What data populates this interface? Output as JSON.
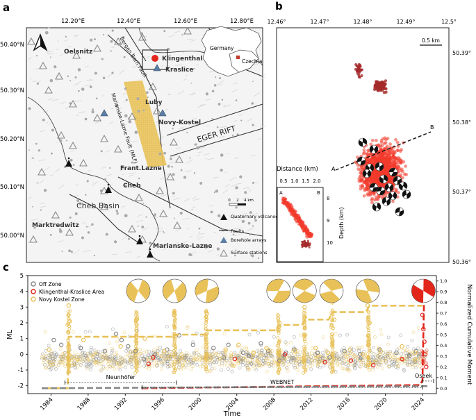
{
  "panels": {
    "a": {
      "label": "a",
      "lon_ticks": [
        "12.20°E",
        "12.40°E",
        "12.60°E",
        "12.80°E"
      ],
      "lat_ticks": [
        "50.40°N",
        "50.30°N",
        "50.20°N",
        "50.10°N",
        "50.00°N"
      ],
      "places": [
        "Oelsnitz",
        "Klingenthal",
        "Kraslice",
        "Luby",
        "Novy-Kostel",
        "Frant.Lazne",
        "Cheb",
        "Cheb Basin",
        "Marktredwitz",
        "Marianske-Lazne"
      ],
      "fault_labels": [
        "Bergen Barn Fault",
        "Marianske-Lazne Fault (MLF)",
        "EGER RIFT"
      ],
      "inset": {
        "countries": [
          "Germany",
          "Czechia"
        ]
      },
      "scalebar": {
        "ticks": [
          "0",
          "2",
          "4 km"
        ]
      },
      "legend": [
        {
          "label": "Quaternary volcanoes",
          "symbol": "volcano"
        },
        {
          "label": "Faults",
          "symbol": "line"
        },
        {
          "label": "Borehole arrays",
          "symbol": "blue-triangle"
        },
        {
          "label": "Surface stations",
          "symbol": "open-triangle"
        }
      ]
    },
    "b": {
      "label": "b",
      "lon_ticks": [
        "12.46°",
        "12.47°",
        "12.48°",
        "12.49°",
        "12.5°"
      ],
      "lat_ticks": [
        "50.39°",
        "50.38°",
        "50.37°",
        "50.36°"
      ],
      "scale_label": "0.5 km",
      "profile_labels": [
        "A",
        "B"
      ],
      "section": {
        "xlabel": "Distance (km)",
        "x_ticks": [
          "0.5",
          "1.0",
          "1.5",
          "2.0"
        ],
        "ylabel": "Depth (km)",
        "y_ticks": [
          "8",
          "9",
          "10"
        ],
        "ends": [
          "A",
          "B"
        ]
      }
    },
    "c": {
      "label": "c"
    }
  },
  "chart_data": {
    "type": "scatter",
    "title": "",
    "xlabel": "Time",
    "ylabel": "ML",
    "y2label": "Normalized Cumulative Moment",
    "xlim": [
      1981.5,
      2025.5
    ],
    "ylim": [
      -2.5,
      5
    ],
    "y2lim": [
      -0.05,
      1.05
    ],
    "x_ticks": [
      1984,
      1988,
      1992,
      1996,
      2000,
      2004,
      2008,
      2012,
      2016,
      2020,
      2024
    ],
    "y_ticks": [
      -2,
      -1,
      0,
      1,
      2,
      3,
      4,
      5
    ],
    "y2_ticks": [
      0.0,
      0.1,
      0.2,
      0.3,
      0.4,
      0.5,
      0.6,
      0.7,
      0.8,
      0.9,
      1.0
    ],
    "legend": [
      {
        "label": "Off Zone",
        "color": "#888888"
      },
      {
        "label": "Klingenthal-Kraslice Area",
        "color": "#e3261b"
      },
      {
        "label": "Novy Kostel Zone",
        "color": "#e8c159"
      }
    ],
    "networks": [
      {
        "label": "Neunhöfer",
        "start": 1985.5,
        "end": 1997.5
      },
      {
        "label": "WEBNET",
        "start": 1993.8,
        "end": 2024.0
      },
      {
        "label": "Oseek",
        "start": 2024.0,
        "end": 2025.2
      }
    ],
    "cumulative_moment": [
      {
        "name": "Novy Kostel Zone",
        "color": "#e8c159",
        "x": [
          1983.3,
          1985.8,
          1985.9,
          1997.1,
          1997.2,
          2000.6,
          2000.7,
          2008.2,
          2008.5,
          2011.0,
          2011.4,
          2013.9,
          2014.3,
          2017.9,
          2018.3,
          2024.0
        ],
        "y": [
          0.0,
          0.0,
          0.48,
          0.48,
          0.5,
          0.5,
          0.54,
          0.54,
          0.59,
          0.59,
          0.64,
          0.64,
          0.71,
          0.71,
          0.77,
          0.77
        ]
      },
      {
        "name": "Klingenthal-Kraslice Area",
        "color": "#e3261b",
        "x": [
          1993.8,
          2023.7,
          2024.0,
          2024.2,
          2024.6
        ],
        "y": [
          0.0,
          0.03,
          0.07,
          0.95,
          1.0
        ]
      },
      {
        "name": "Off Zone",
        "color": "#888888",
        "x": [
          1983.0,
          2024.6
        ],
        "y": [
          0.0,
          0.02
        ]
      }
    ],
    "focal_mechanisms": [
      {
        "x": 1993.4,
        "zone": "Novy Kostel Zone"
      },
      {
        "x": 1997.3,
        "zone": "Novy Kostel Zone"
      },
      {
        "x": 2000.8,
        "zone": "Novy Kostel Zone"
      },
      {
        "x": 2008.5,
        "zone": "Novy Kostel Zone"
      },
      {
        "x": 2011.3,
        "zone": "Novy Kostel Zone"
      },
      {
        "x": 2014.2,
        "zone": "Novy Kostel Zone"
      },
      {
        "x": 2018.1,
        "zone": "Novy Kostel Zone"
      },
      {
        "x": 2024.1,
        "zone": "Klingenthal-Kraslice Area"
      }
    ],
    "series": [
      {
        "name": "Off Zone",
        "color": "#888888",
        "x": [
          1984.3,
          1985.1,
          1987.2,
          1989.8,
          1991.0,
          1991.6,
          1992.3,
          1993.1,
          1994.0,
          1995.2,
          1996.5,
          1997.8,
          1999.3,
          2001.5,
          2002.6,
          2003.1,
          2004.7,
          2005.3,
          2006.6,
          2007.4,
          2008.6,
          2009.3,
          2010.2,
          2012.7,
          2014.0,
          2015.6,
          2017.3,
          2019.4,
          2021.2,
          2022.6,
          2023.3
        ],
        "y": [
          0.9,
          0.6,
          0.4,
          0.2,
          1.3,
          0.9,
          0.5,
          0.2,
          -0.3,
          0.0,
          0.3,
          1.2,
          0.6,
          0.4,
          -0.2,
          0.6,
          0.1,
          -0.1,
          0.7,
          0.2,
          -0.4,
          0.1,
          0.3,
          0.1,
          -0.2,
          0.2,
          0.0,
          0.3,
          0.1,
          -0.1,
          0.2
        ]
      },
      {
        "name": "Klingenthal-Kraslice Area",
        "color": "#e3261b",
        "x": [
          1994.5,
          1995.0,
          2003.8,
          2009.2,
          2013.5,
          2016.3,
          2018.7,
          2021.8,
          2024.0,
          2024.1,
          2024.2,
          2024.3,
          2024.4
        ],
        "y": [
          -0.6,
          -0.2,
          -0.3,
          0.0,
          -0.5,
          -0.4,
          -0.7,
          -0.3,
          2.5,
          1.6,
          0.8,
          0.0,
          -0.8
        ]
      },
      {
        "name": "Novy Kostel Zone",
        "color": "#e8c159",
        "x": [
          1983.8,
          1985.9,
          1986.0,
          1987.5,
          1991.5,
          1993.2,
          1994.1,
          1996.2,
          1997.3,
          2000.6,
          2000.8,
          2002.8,
          2004.2,
          2005.8,
          2007.2,
          2008.4,
          2008.6,
          2010.3,
          2011.3,
          2012.5,
          2013.8,
          2014.3,
          2014.5,
          2016.2,
          2017.6,
          2018.1,
          2018.3,
          2019.5,
          2021.8,
          2023.2
        ],
        "y": [
          0.3,
          3.1,
          2.1,
          0.9,
          0.5,
          2.2,
          1.0,
          0.2,
          2.5,
          3.8,
          2.6,
          0.3,
          0.6,
          0.1,
          0.4,
          3.5,
          2.0,
          0.2,
          3.0,
          0.4,
          0.1,
          3.3,
          2.2,
          0.3,
          0.0,
          3.1,
          2.0,
          0.2,
          0.5,
          0.1
        ]
      }
    ]
  }
}
